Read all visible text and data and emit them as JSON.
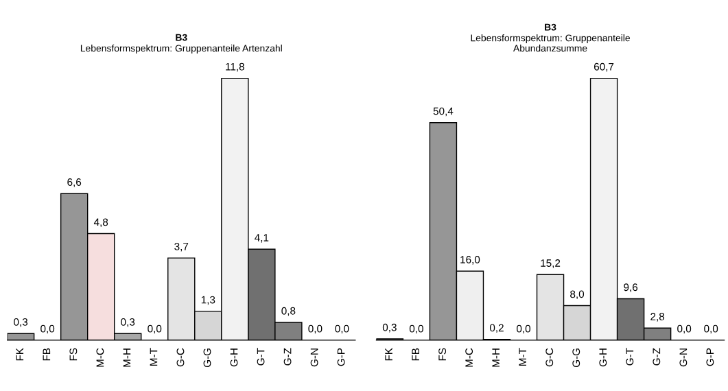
{
  "chart_data": [
    {
      "type": "bar",
      "title": "B3",
      "subtitle": "Lebensformspektrum: Gruppenanteile Artenzahl",
      "categories": [
        "FK",
        "FB",
        "FS",
        "M-C",
        "M-H",
        "M-T",
        "G-C",
        "G-G",
        "G-H",
        "G-T",
        "G-Z",
        "G-N",
        "G-P"
      ],
      "values": [
        0.3,
        0.0,
        6.6,
        4.8,
        0.3,
        0.0,
        3.7,
        1.3,
        11.8,
        4.1,
        0.8,
        0.0,
        0.0
      ],
      "value_labels": [
        "0,3",
        "0,0",
        "6,6",
        "4,8",
        "0,3",
        "0,0",
        "3,7",
        "1,3",
        "11,8",
        "4,1",
        "0,8",
        "0,0",
        "0,0"
      ],
      "colors": [
        "#969696",
        "#969696",
        "#969696",
        "#f6dede",
        "#a8a8a8",
        "#ffffff",
        "#e4e4e4",
        "#d6d6d6",
        "#f2f2f2",
        "#707070",
        "#808080",
        "#ffffff",
        "#ffffff"
      ],
      "grid": false,
      "legend": false
    },
    {
      "type": "bar",
      "title": "B3",
      "subtitle": "Lebensformspektrum: Gruppenanteile\nAbundanzsumme",
      "categories": [
        "FK",
        "FB",
        "FS",
        "M-C",
        "M-H",
        "M-T",
        "G-C",
        "G-G",
        "G-H",
        "G-T",
        "G-Z",
        "G-N",
        "G-P"
      ],
      "values": [
        0.3,
        0.0,
        50.4,
        16.0,
        0.2,
        0.0,
        15.2,
        8.0,
        60.7,
        9.6,
        2.8,
        0.0,
        0.0
      ],
      "value_labels": [
        "0,3",
        "0,0",
        "50,4",
        "16,0",
        "0,2",
        "0,0",
        "15,2",
        "8,0",
        "60,7",
        "9,6",
        "2,8",
        "0,0",
        "0,0"
      ],
      "colors": [
        "#969696",
        "#969696",
        "#969696",
        "#efefef",
        "#a8a8a8",
        "#ffffff",
        "#e4e4e4",
        "#d6d6d6",
        "#f2f2f2",
        "#707070",
        "#808080",
        "#ffffff",
        "#ffffff"
      ],
      "grid": false,
      "legend": false
    }
  ]
}
